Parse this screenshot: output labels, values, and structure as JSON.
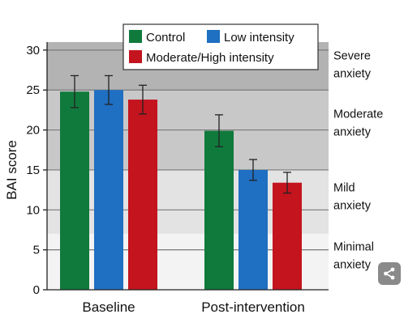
{
  "chart_data": {
    "type": "bar",
    "ylabel": "BAI score",
    "ylim": [
      0,
      31
    ],
    "yticks": [
      0,
      5,
      10,
      15,
      20,
      25,
      30
    ],
    "categories": [
      "Baseline",
      "Post-intervention"
    ],
    "series": [
      {
        "name": "Control",
        "color": "#0f7a3c",
        "values": [
          24.8,
          19.9
        ],
        "errors": [
          2.0,
          2.0
        ]
      },
      {
        "name": "Low intensity",
        "color": "#1f6fc2",
        "values": [
          25.0,
          15.0
        ],
        "errors": [
          1.8,
          1.3
        ]
      },
      {
        "name": "Moderate/High intensity",
        "color": "#c4141e",
        "values": [
          23.8,
          13.4
        ],
        "errors": [
          1.8,
          1.3
        ]
      }
    ],
    "bands": [
      {
        "from": 0,
        "to": 7,
        "color": "#f3f3f3",
        "label_lines": [
          "Minimal",
          "anxiety"
        ],
        "label_at": 4.3
      },
      {
        "from": 7,
        "to": 15,
        "color": "#e3e3e3",
        "label_lines": [
          "Mild",
          "anxiety"
        ],
        "label_at": 11.7
      },
      {
        "from": 15,
        "to": 25,
        "color": "#c8c8c8",
        "label_lines": [
          "Moderate",
          "anxiety"
        ],
        "label_at": 20.9
      },
      {
        "from": 25,
        "to": 31,
        "color": "#b3b3b3",
        "label_lines": [
          "Severe",
          "anxiety"
        ],
        "label_at": 28.2
      }
    ],
    "legend_placement": "top",
    "grid": true
  },
  "share_icon": "share-icon"
}
